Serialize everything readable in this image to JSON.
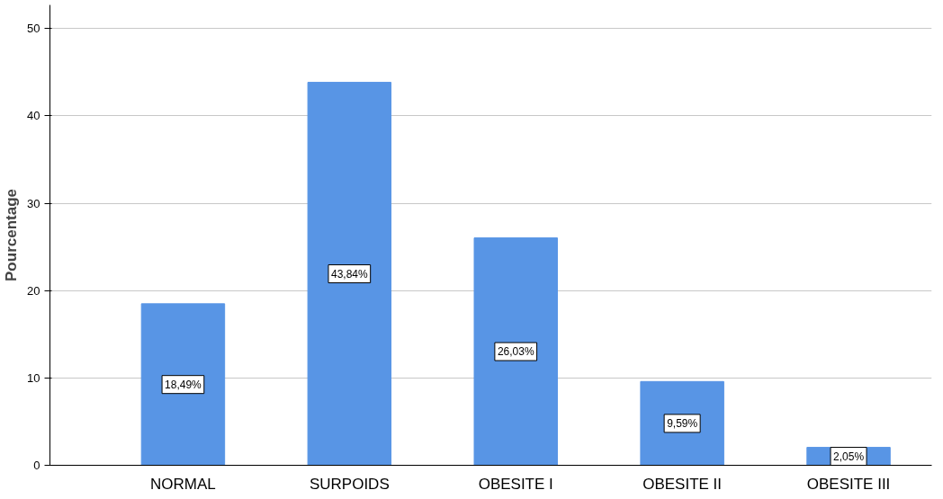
{
  "chart_data": {
    "type": "bar",
    "ylabel": "Pourcentage",
    "categories": [
      "NORMAL",
      "SURPOIDS",
      "OBESITE I",
      "OBESITE II",
      "OBESITE III"
    ],
    "values": [
      18.49,
      43.84,
      26.03,
      9.59,
      2.05
    ],
    "value_labels": [
      "18,49%",
      "43,84%",
      "26,03%",
      "9,59%",
      "2,05%"
    ],
    "color": "#5895e5",
    "ylim": [
      0,
      52.7
    ],
    "yticks": [
      0,
      10,
      20,
      30,
      40,
      50
    ],
    "grid": "y"
  }
}
